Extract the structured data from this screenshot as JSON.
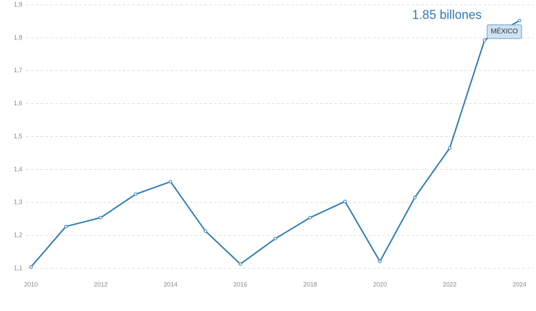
{
  "chart_data": {
    "type": "line",
    "x": [
      2010,
      2011,
      2012,
      2013,
      2014,
      2015,
      2016,
      2017,
      2018,
      2019,
      2020,
      2021,
      2022,
      2023,
      2024
    ],
    "series": [
      {
        "name": "MÉXICO",
        "color": "#2f7bb3",
        "values": [
          1.104,
          1.227,
          1.254,
          1.325,
          1.363,
          1.213,
          1.113,
          1.19,
          1.254,
          1.303,
          1.121,
          1.315,
          1.465,
          1.793,
          1.852
        ]
      }
    ],
    "annotation": "1.85 billones",
    "xlim": [
      2010,
      2024
    ],
    "xticks": [
      2010,
      2012,
      2014,
      2016,
      2018,
      2020,
      2022,
      2024
    ],
    "ylim": [
      1.1,
      1.9
    ],
    "yticks": [
      {
        "value": 1.1,
        "label": "1,1"
      },
      {
        "value": 1.2,
        "label": "1,2"
      },
      {
        "value": 1.3,
        "label": "1,3"
      },
      {
        "value": 1.4,
        "label": "1,4"
      },
      {
        "value": 1.5,
        "label": "1,5"
      },
      {
        "value": 1.6,
        "label": "1,6"
      },
      {
        "value": 1.7,
        "label": "1,7"
      },
      {
        "value": 1.8,
        "label": "1,8"
      },
      {
        "value": 1.9,
        "label": "1,9"
      }
    ],
    "grid": true
  }
}
